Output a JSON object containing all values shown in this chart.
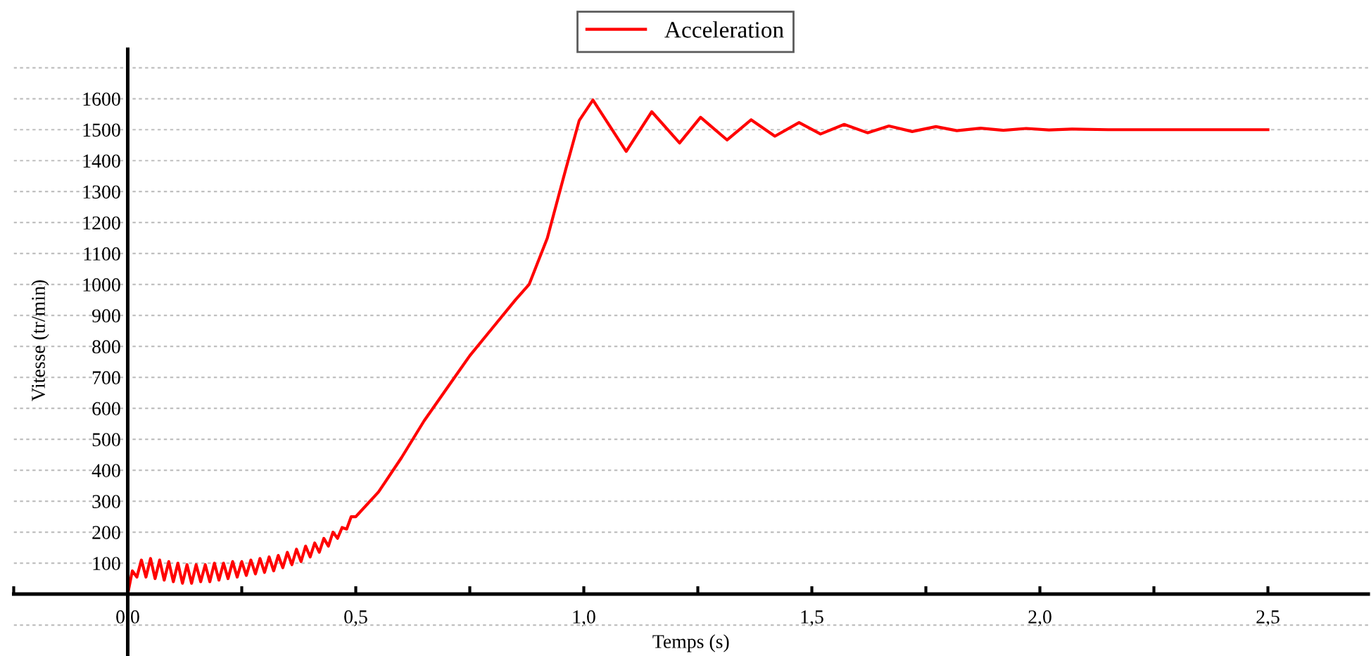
{
  "chart_data": {
    "type": "line",
    "xlabel": "Temps (s)",
    "ylabel": "Vitesse (tr/min)",
    "legend": "top",
    "grid": "y",
    "line_style": "solid",
    "marker": "none",
    "xlim": [
      -0.25,
      2.72
    ],
    "ylim": [
      -200,
      1760
    ],
    "xticks": [
      {
        "value": -0.25,
        "label": null
      },
      {
        "value": 0,
        "label": "0,0"
      },
      {
        "value": 0.25,
        "label": null
      },
      {
        "value": 0.5,
        "label": "0,5"
      },
      {
        "value": 0.75,
        "label": null
      },
      {
        "value": 1.0,
        "label": "1,0"
      },
      {
        "value": 1.25,
        "label": null
      },
      {
        "value": 1.5,
        "label": "1,5"
      },
      {
        "value": 1.75,
        "label": null
      },
      {
        "value": 2.0,
        "label": "2,0"
      },
      {
        "value": 2.25,
        "label": null
      },
      {
        "value": 2.5,
        "label": "2,5"
      }
    ],
    "yticks": [
      {
        "value": -100,
        "label": null
      },
      {
        "value": 0,
        "label": null
      },
      100,
      200,
      300,
      400,
      500,
      600,
      700,
      800,
      900,
      1000,
      1100,
      1200,
      1300,
      1400,
      1500,
      1600,
      {
        "value": 1700,
        "label": null
      }
    ],
    "series": [
      {
        "name": "Acceleration",
        "color": "#ff0000",
        "x": [
          0,
          0.01,
          0.02,
          0.03,
          0.04,
          0.05,
          0.06,
          0.07,
          0.08,
          0.09,
          0.1,
          0.11,
          0.12,
          0.13,
          0.14,
          0.15,
          0.16,
          0.17,
          0.18,
          0.19,
          0.2,
          0.21,
          0.22,
          0.23,
          0.24,
          0.25,
          0.26,
          0.27,
          0.28,
          0.29,
          0.3,
          0.31,
          0.32,
          0.33,
          0.34,
          0.35,
          0.36,
          0.37,
          0.38,
          0.39,
          0.4,
          0.41,
          0.42,
          0.43,
          0.44,
          0.45,
          0.46,
          0.47,
          0.48,
          0.49,
          0.5,
          0.55,
          0.6,
          0.65,
          0.7,
          0.75,
          0.8,
          0.85,
          0.88,
          0.92,
          0.96,
          0.99,
          1.02,
          1.093,
          1.149,
          1.21,
          1.256,
          1.314,
          1.367,
          1.419,
          1.472,
          1.519,
          1.571,
          1.622,
          1.669,
          1.72,
          1.772,
          1.818,
          1.87,
          1.92,
          1.97,
          2.02,
          2.07,
          2.15,
          2.3,
          2.5
        ],
        "values": [
          0,
          75,
          55,
          110,
          55,
          115,
          50,
          110,
          45,
          105,
          40,
          100,
          35,
          95,
          35,
          95,
          40,
          95,
          40,
          100,
          45,
          100,
          50,
          105,
          55,
          105,
          60,
          110,
          65,
          115,
          70,
          120,
          75,
          125,
          85,
          135,
          95,
          145,
          105,
          155,
          120,
          165,
          135,
          180,
          155,
          200,
          180,
          215,
          210,
          250,
          250,
          330,
          440,
          560,
          665,
          770,
          860,
          950,
          1000,
          1150,
          1370,
          1530,
          1596,
          1430,
          1558,
          1457,
          1540,
          1467,
          1532,
          1479,
          1523,
          1486,
          1517,
          1490,
          1512,
          1494,
          1510,
          1497,
          1505,
          1498,
          1504,
          1499,
          1502,
          1500,
          1500,
          1500
        ]
      }
    ]
  }
}
